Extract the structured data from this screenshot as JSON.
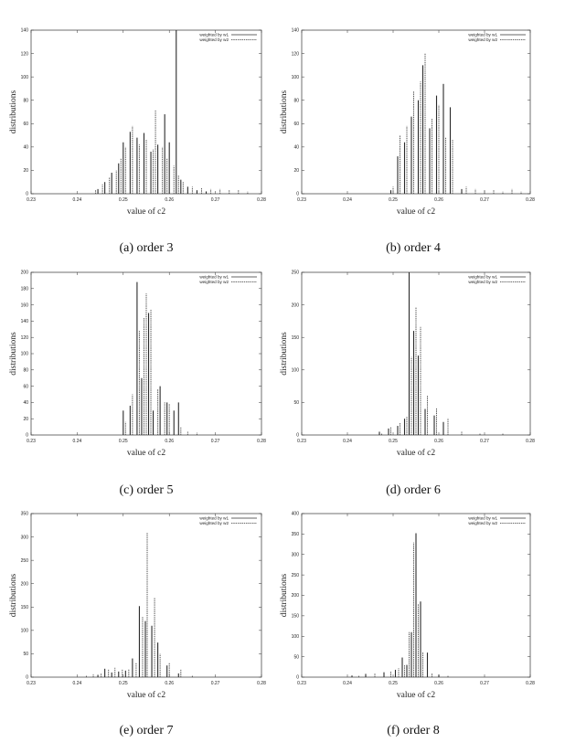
{
  "chart_data": [
    {
      "type": "bar",
      "caption": "(a) order 3",
      "xlabel": "value of c2",
      "ylabel": "distributions",
      "xlim": [
        0.23,
        0.28
      ],
      "ylim": [
        0,
        140
      ],
      "xticks": [
        "0.23",
        "0.24",
        "0.25",
        "0.26",
        "0.27",
        "0.28"
      ],
      "yticks": [
        "0",
        "20",
        "40",
        "60",
        "80",
        "100",
        "120",
        "140"
      ],
      "legend_position": "top-right",
      "series": [
        {
          "name": "weighted by w1",
          "style": "solid",
          "x": [
            0.2445,
            0.246,
            0.2475,
            0.249,
            0.25,
            0.2515,
            0.253,
            0.2545,
            0.256,
            0.2575,
            0.259,
            0.26,
            0.2615,
            0.2625,
            0.264,
            0.266,
            0.268
          ],
          "values": [
            4,
            10,
            18,
            26,
            44,
            53,
            48,
            52,
            36,
            42,
            68,
            44,
            140,
            12,
            6,
            3,
            2
          ]
        },
        {
          "name": "weighted by w2",
          "style": "dashed",
          "x": [
            0.244,
            0.2455,
            0.247,
            0.2485,
            0.2495,
            0.2505,
            0.252,
            0.2535,
            0.255,
            0.2565,
            0.257,
            0.2585,
            0.2595,
            0.261,
            0.262,
            0.263,
            0.265,
            0.267,
            0.269,
            0.271,
            0.273,
            0.275,
            0.277
          ],
          "values": [
            3,
            8,
            14,
            20,
            30,
            40,
            58,
            42,
            46,
            38,
            72,
            40,
            30,
            24,
            16,
            10,
            6,
            5,
            4,
            4,
            3,
            3,
            2
          ]
        }
      ]
    },
    {
      "type": "bar",
      "caption": "(b) order 4",
      "xlabel": "value of c2",
      "ylabel": "distributions",
      "xlim": [
        0.23,
        0.28
      ],
      "ylim": [
        0,
        140
      ],
      "xticks": [
        "0.23",
        "0.24",
        "0.25",
        "0.26",
        "0.27",
        "0.28"
      ],
      "yticks": [
        "0",
        "20",
        "40",
        "60",
        "80",
        "100",
        "120",
        "140"
      ],
      "legend_position": "top-right",
      "series": [
        {
          "name": "weighted by w1",
          "style": "solid",
          "x": [
            0.2495,
            0.251,
            0.2525,
            0.254,
            0.2555,
            0.2565,
            0.258,
            0.2595,
            0.261,
            0.2625,
            0.265
          ],
          "values": [
            3,
            32,
            44,
            66,
            80,
            110,
            56,
            84,
            94,
            74,
            4
          ]
        },
        {
          "name": "weighted by w2",
          "style": "dashed",
          "x": [
            0.25,
            0.2515,
            0.253,
            0.2545,
            0.256,
            0.257,
            0.2585,
            0.26,
            0.2615,
            0.263,
            0.266,
            0.268,
            0.27,
            0.272,
            0.274,
            0.276,
            0.278
          ],
          "values": [
            6,
            50,
            58,
            88,
            96,
            120,
            64,
            76,
            48,
            46,
            6,
            4,
            3,
            3,
            2,
            4,
            2
          ]
        }
      ]
    },
    {
      "type": "bar",
      "caption": "(c) order 5",
      "xlabel": "value of c2",
      "ylabel": "distributions",
      "xlim": [
        0.23,
        0.28
      ],
      "ylim": [
        0,
        200
      ],
      "xticks": [
        "0.23",
        "0.24",
        "0.25",
        "0.26",
        "0.27",
        "0.28"
      ],
      "yticks": [
        "0",
        "20",
        "40",
        "60",
        "80",
        "100",
        "120",
        "140",
        "160",
        "180",
        "200"
      ],
      "legend_position": "top-right",
      "series": [
        {
          "name": "weighted by w1",
          "style": "solid",
          "x": [
            0.25,
            0.2515,
            0.253,
            0.254,
            0.2555,
            0.2565,
            0.258,
            0.2595,
            0.261,
            0.262
          ],
          "values": [
            30,
            36,
            188,
            70,
            150,
            30,
            60,
            40,
            30,
            40
          ]
        },
        {
          "name": "weighted by w2",
          "style": "dashed",
          "x": [
            0.2505,
            0.252,
            0.2535,
            0.2545,
            0.255,
            0.256,
            0.2575,
            0.259,
            0.26,
            0.2625,
            0.264,
            0.266
          ],
          "values": [
            16,
            50,
            128,
            144,
            174,
            154,
            56,
            40,
            38,
            10,
            4,
            3
          ]
        }
      ]
    },
    {
      "type": "bar",
      "caption": "(d) order 6",
      "xlabel": "value of c2",
      "ylabel": "distributions",
      "xlim": [
        0.23,
        0.28
      ],
      "ylim": [
        0,
        250
      ],
      "xticks": [
        "0.23",
        "0.24",
        "0.25",
        "0.26",
        "0.27",
        "0.28"
      ],
      "yticks": [
        "0",
        "50",
        "100",
        "150",
        "200",
        "250"
      ],
      "legend_position": "top-right",
      "series": [
        {
          "name": "weighted by w1",
          "style": "solid",
          "x": [
            0.247,
            0.249,
            0.251,
            0.2525,
            0.2535,
            0.2545,
            0.2555,
            0.257,
            0.259,
            0.261
          ],
          "values": [
            5,
            10,
            14,
            25,
            250,
            160,
            122,
            40,
            30,
            20
          ]
        },
        {
          "name": "weighted by w2",
          "style": "dashed",
          "x": [
            0.2475,
            0.2495,
            0.2515,
            0.253,
            0.254,
            0.255,
            0.256,
            0.2575,
            0.2595,
            0.262,
            0.265,
            0.269,
            0.274
          ],
          "values": [
            3,
            12,
            18,
            28,
            120,
            196,
            166,
            60,
            42,
            26,
            5,
            3,
            2
          ]
        }
      ]
    },
    {
      "type": "bar",
      "caption": "(e) order 7",
      "xlabel": "value of c2",
      "ylabel": "distributions",
      "xlim": [
        0.23,
        0.28
      ],
      "ylim": [
        0,
        350
      ],
      "xticks": [
        "0.23",
        "0.24",
        "0.25",
        "0.26",
        "0.27",
        "0.28"
      ],
      "yticks": [
        "0",
        "50",
        "100",
        "150",
        "200",
        "250",
        "300",
        "350"
      ],
      "legend_position": "top-right",
      "series": [
        {
          "name": "weighted by w1",
          "style": "solid",
          "x": [
            0.2445,
            0.246,
            0.2475,
            0.249,
            0.2505,
            0.252,
            0.2535,
            0.2548,
            0.2562,
            0.2575,
            0.2595,
            0.262
          ],
          "values": [
            5,
            18,
            10,
            12,
            14,
            40,
            152,
            120,
            110,
            74,
            25,
            8
          ]
        },
        {
          "name": "weighted by w2",
          "style": "dashed",
          "x": [
            0.242,
            0.2435,
            0.2452,
            0.2468,
            0.2482,
            0.2498,
            0.2512,
            0.2528,
            0.2542,
            0.2552,
            0.2568,
            0.258,
            0.26,
            0.2625,
            0.265
          ],
          "values": [
            3,
            6,
            8,
            16,
            20,
            16,
            18,
            30,
            130,
            310,
            170,
            50,
            30,
            16,
            4
          ]
        }
      ]
    },
    {
      "type": "bar",
      "caption": "(f) order 8",
      "xlabel": "value of c2",
      "ylabel": "distributions",
      "xlim": [
        0.23,
        0.28
      ],
      "ylim": [
        0,
        400
      ],
      "xticks": [
        "0.23",
        "0.24",
        "0.25",
        "0.26",
        "0.27",
        "0.28"
      ],
      "yticks": [
        "0",
        "50",
        "100",
        "150",
        "200",
        "250",
        "300",
        "350",
        "400"
      ],
      "legend_position": "top-right",
      "series": [
        {
          "name": "weighted by w1",
          "style": "solid",
          "x": [
            0.241,
            0.244,
            0.248,
            0.2505,
            0.252,
            0.253,
            0.254,
            0.255,
            0.256,
            0.2575,
            0.26
          ],
          "values": [
            4,
            8,
            12,
            18,
            48,
            30,
            110,
            352,
            185,
            60,
            6
          ]
        },
        {
          "name": "weighted by w2",
          "style": "dashed",
          "x": [
            0.2425,
            0.246,
            0.2495,
            0.2512,
            0.2525,
            0.2535,
            0.2545,
            0.2555,
            0.2565,
            0.2585,
            0.262
          ],
          "values": [
            3,
            10,
            14,
            22,
            30,
            110,
            330,
            180,
            62,
            10,
            5
          ]
        }
      ]
    }
  ]
}
